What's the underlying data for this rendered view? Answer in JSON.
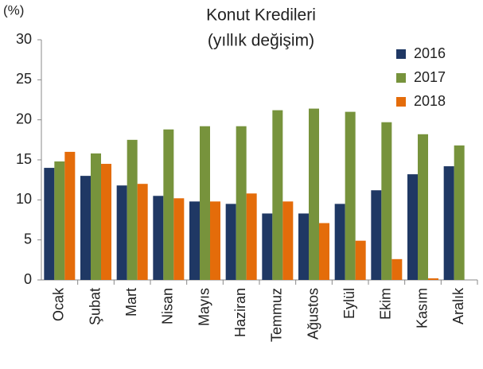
{
  "chart_data": {
    "type": "bar",
    "title": "Konut Kredileri",
    "subtitle": "(yıllık değişim)",
    "y_label": "(%)",
    "categories": [
      "Ocak",
      "Şubat",
      "Mart",
      "Nisan",
      "Mayıs",
      "Haziran",
      "Temmuz",
      "Ağustos",
      "Eylül",
      "Ekim",
      "Kasım",
      "Aralık"
    ],
    "series": [
      {
        "name": "2016",
        "color": "#1f3864",
        "values": [
          14.0,
          13.0,
          11.8,
          10.5,
          9.8,
          9.5,
          8.3,
          8.3,
          9.5,
          11.2,
          13.2,
          14.2
        ]
      },
      {
        "name": "2017",
        "color": "#77933c",
        "values": [
          14.8,
          15.8,
          17.5,
          18.8,
          19.2,
          19.2,
          21.2,
          21.4,
          21.0,
          19.7,
          18.2,
          16.8
        ]
      },
      {
        "name": "2018",
        "color": "#e46c0a",
        "values": [
          16.0,
          14.5,
          12.0,
          10.2,
          9.8,
          10.8,
          9.8,
          7.1,
          4.9,
          2.6,
          0.2,
          null
        ]
      }
    ],
    "ylim": [
      0,
      30
    ],
    "yticks": [
      0,
      5,
      10,
      15,
      20,
      25,
      30
    ],
    "grid": false,
    "legend": "upper right"
  }
}
